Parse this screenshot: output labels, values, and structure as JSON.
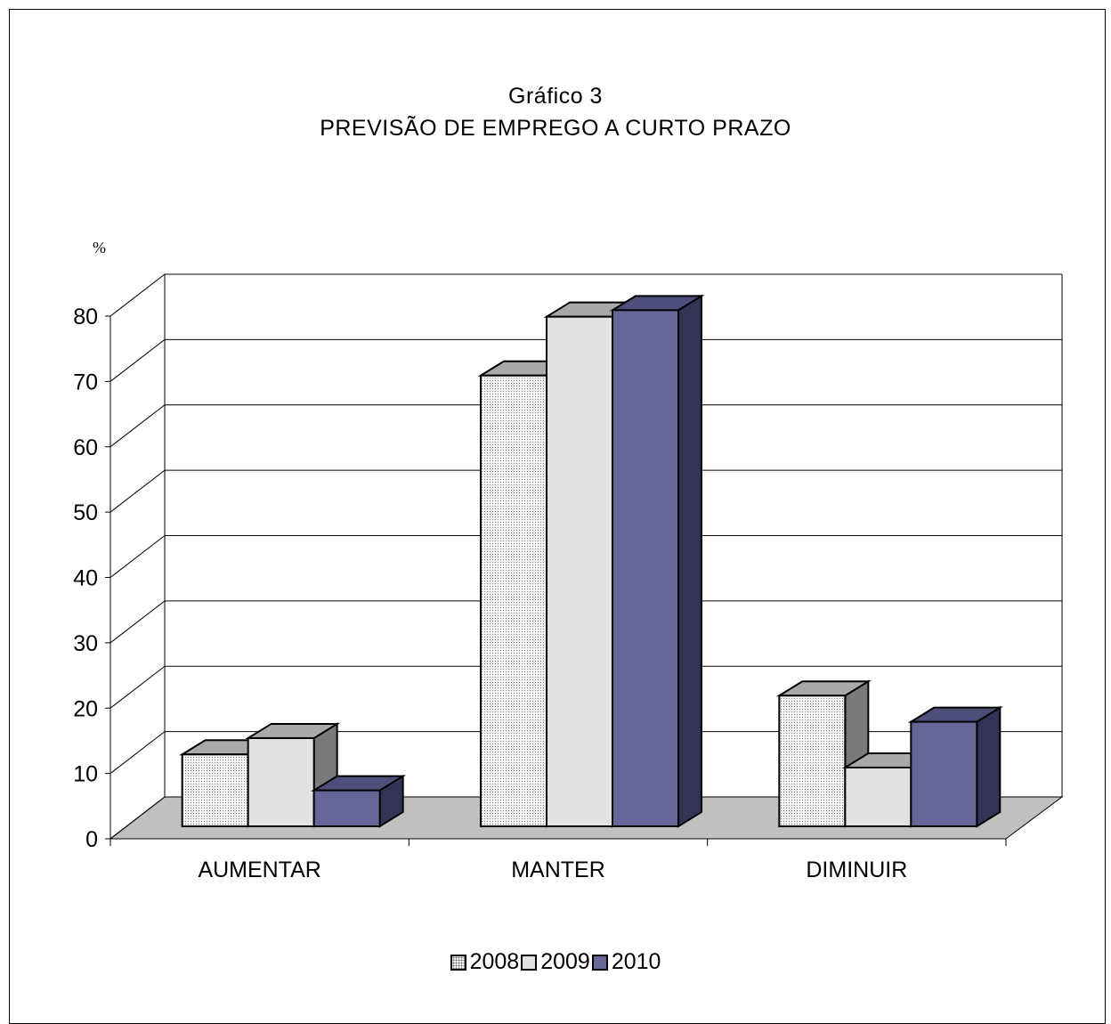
{
  "chart_data": {
    "type": "bar",
    "title": "Gráfico 3",
    "subtitle": "PREVISÃO DE EMPREGO A CURTO PRAZO",
    "ylabel": "%",
    "categories": [
      "AUMENTAR",
      "MANTER",
      "DIMINUIR"
    ],
    "series": [
      {
        "name": "2008",
        "values": [
          11,
          69,
          20
        ],
        "color": "#f0f0f0",
        "pattern": "dotted"
      },
      {
        "name": "2009",
        "values": [
          13.5,
          78,
          9
        ],
        "color": "#e2e2e2"
      },
      {
        "name": "2010",
        "values": [
          5.5,
          79,
          16
        ],
        "color": "#666699"
      }
    ],
    "ylim": [
      0,
      80
    ],
    "yticks": [
      0,
      10,
      20,
      30,
      40,
      50,
      60,
      70,
      80
    ],
    "grid": true,
    "legend": "bottom",
    "style": "3d"
  }
}
